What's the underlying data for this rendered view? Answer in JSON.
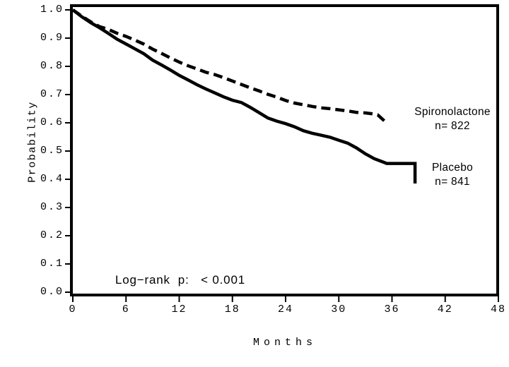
{
  "figure": {
    "background": "#ffffff",
    "line_color": "#000000"
  },
  "chart_data": {
    "type": "line",
    "subtype": "kaplan-meier-survival",
    "title": "",
    "xlabel": "Months",
    "ylabel": "Probability",
    "xlim": [
      0,
      48
    ],
    "ylim": [
      0.0,
      1.0
    ],
    "x_ticks": [
      0,
      6,
      12,
      18,
      24,
      30,
      36,
      42,
      48
    ],
    "x_tick_labels": [
      "0",
      "6",
      "12",
      "18",
      "24",
      "30",
      "36",
      "42",
      "48"
    ],
    "y_ticks": [
      0.0,
      0.1,
      0.2,
      0.3,
      0.4,
      0.5,
      0.6,
      0.7,
      0.8,
      0.9,
      1.0
    ],
    "y_tick_labels": [
      "0.0",
      "0.1",
      "0.2",
      "0.3",
      "0.4",
      "0.5",
      "0.6",
      "0.7",
      "0.8",
      "0.9",
      "1.0"
    ],
    "grid": false,
    "frame": true,
    "legend_position": "right-inside",
    "annotation": "Log−rank  p:   < 0.001",
    "series": [
      {
        "name": "Spironolactone",
        "n_label": "n= 822",
        "n": 822,
        "style": "dashed",
        "color": "#000000",
        "points": [
          [
            0,
            1.0
          ],
          [
            1,
            0.978
          ],
          [
            2,
            0.958
          ],
          [
            2.5,
            0.949
          ],
          [
            3,
            0.941
          ],
          [
            4,
            0.931
          ],
          [
            5,
            0.917
          ],
          [
            6,
            0.906
          ],
          [
            7,
            0.893
          ],
          [
            8,
            0.879
          ],
          [
            9,
            0.861
          ],
          [
            10,
            0.846
          ],
          [
            11,
            0.83
          ],
          [
            12,
            0.815
          ],
          [
            13,
            0.802
          ],
          [
            14,
            0.791
          ],
          [
            15,
            0.779
          ],
          [
            16,
            0.771
          ],
          [
            17,
            0.76
          ],
          [
            18,
            0.748
          ],
          [
            19,
            0.736
          ],
          [
            20,
            0.724
          ],
          [
            21,
            0.713
          ],
          [
            22,
            0.701
          ],
          [
            23,
            0.691
          ],
          [
            24,
            0.679
          ],
          [
            25,
            0.67
          ],
          [
            26,
            0.664
          ],
          [
            27,
            0.658
          ],
          [
            28,
            0.653
          ],
          [
            29,
            0.65
          ],
          [
            30,
            0.646
          ],
          [
            31,
            0.642
          ],
          [
            32,
            0.637
          ],
          [
            33,
            0.635
          ],
          [
            34,
            0.631
          ],
          [
            34.4,
            0.628
          ],
          [
            35.2,
            0.605
          ]
        ]
      },
      {
        "name": "Placebo",
        "n_label": "n= 841",
        "n": 841,
        "style": "solid",
        "color": "#000000",
        "points": [
          [
            0,
            1.0
          ],
          [
            1,
            0.976
          ],
          [
            2,
            0.955
          ],
          [
            3,
            0.937
          ],
          [
            4,
            0.917
          ],
          [
            5,
            0.896
          ],
          [
            6,
            0.879
          ],
          [
            7,
            0.862
          ],
          [
            8,
            0.845
          ],
          [
            9,
            0.822
          ],
          [
            10,
            0.805
          ],
          [
            11,
            0.787
          ],
          [
            12,
            0.768
          ],
          [
            13,
            0.752
          ],
          [
            14,
            0.735
          ],
          [
            15,
            0.72
          ],
          [
            16,
            0.706
          ],
          [
            17,
            0.692
          ],
          [
            18,
            0.68
          ],
          [
            19,
            0.672
          ],
          [
            20,
            0.655
          ],
          [
            21,
            0.636
          ],
          [
            22,
            0.617
          ],
          [
            23,
            0.606
          ],
          [
            24,
            0.597
          ],
          [
            25,
            0.586
          ],
          [
            26,
            0.572
          ],
          [
            27,
            0.563
          ],
          [
            28,
            0.556
          ],
          [
            29,
            0.549
          ],
          [
            30,
            0.538
          ],
          [
            31,
            0.528
          ],
          [
            32,
            0.511
          ],
          [
            33,
            0.49
          ],
          [
            34,
            0.473
          ],
          [
            35,
            0.461
          ],
          [
            35.4,
            0.456
          ],
          [
            38.6,
            0.456
          ],
          [
            38.6,
            0.385
          ]
        ]
      }
    ]
  }
}
